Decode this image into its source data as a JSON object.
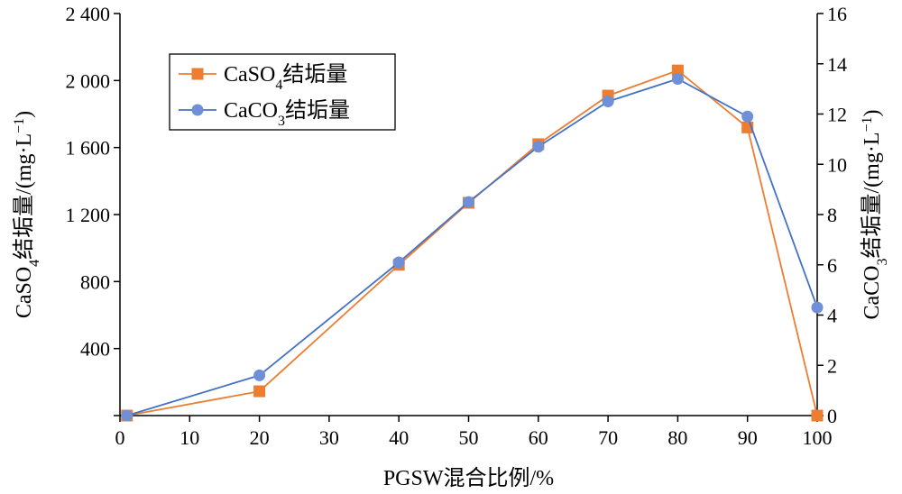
{
  "chart_data": {
    "type": "line",
    "x": [
      1,
      20,
      40,
      50,
      60,
      70,
      80,
      90,
      100
    ],
    "xlabel": "PGSW混合比例/%",
    "xlim": [
      0,
      100
    ],
    "xticks": [
      "0",
      "10",
      "20",
      "30",
      "40",
      "50",
      "60",
      "70",
      "80",
      "90",
      "100"
    ],
    "ylabel": {
      "prefix": "CaSO",
      "sub": "4",
      "mid": "结垢量/(mg·L",
      "sup": "−1",
      "suffix": ")"
    },
    "ylim": [
      0,
      2400
    ],
    "yticks": [
      "",
      "400",
      "800",
      "1 200",
      "1 600",
      "2 000",
      "2 400"
    ],
    "y2label": {
      "prefix": "CaCO",
      "sub": "3",
      "mid": "结垢量/(mg·L",
      "sup": "−1",
      "suffix": ")"
    },
    "y2lim": [
      0,
      16
    ],
    "y2ticks": [
      "0",
      "2",
      "4",
      "6",
      "8",
      "10",
      "12",
      "14",
      "16"
    ],
    "grid": false,
    "legend_position": "top-left",
    "series": [
      {
        "name_main": "CaSO",
        "name_sub": "4",
        "name_suffix": "结垢量",
        "axis": "left",
        "marker": "square",
        "color": "#ED7D31",
        "values": [
          0,
          145,
          900,
          1270,
          1620,
          1910,
          2060,
          1720,
          0
        ]
      },
      {
        "name_main": "CaCO",
        "name_sub": "3",
        "name_suffix": "结垢量",
        "axis": "right",
        "marker": "circle",
        "color": "#4472C4",
        "marker_color": "#6F8FD6",
        "values": [
          0,
          1.6,
          6.1,
          8.5,
          10.7,
          12.5,
          13.4,
          11.9,
          4.3
        ]
      }
    ]
  }
}
